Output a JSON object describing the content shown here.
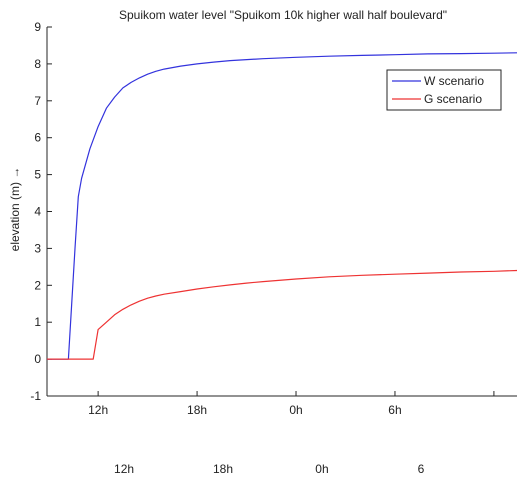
{
  "chart_data": {
    "type": "line",
    "title": "Spuikom water level \"Spuikom 10k higher wall half boulevard\"",
    "ylabel": "elevation (m) →",
    "xlabel": "",
    "ylim": [
      -1,
      9
    ],
    "yticks": [
      -1,
      0,
      1,
      2,
      3,
      4,
      5,
      6,
      7,
      8,
      9
    ],
    "xlim_hours": [
      8.9,
      37.4
    ],
    "xticks": [
      {
        "hour": 12,
        "label": "12h"
      },
      {
        "hour": 18,
        "label": "18h"
      },
      {
        "hour": 24,
        "label": "0h"
      },
      {
        "hour": 30,
        "label": "6h"
      },
      {
        "hour": 36,
        "label": ""
      }
    ],
    "secondary_xtick_labels": [
      {
        "hour": 18,
        "label": "12h"
      },
      {
        "hour": 24,
        "label": "18h"
      },
      {
        "hour": 30,
        "label": "0h"
      },
      {
        "hour": 36,
        "label": "6"
      }
    ],
    "grid": false,
    "legend": "top-right",
    "series": [
      {
        "name": "W scenario",
        "color": "#3333dd",
        "x": [
          8.9,
          10.2,
          10.4,
          10.6,
          10.8,
          11.0,
          11.5,
          12.0,
          12.5,
          13.0,
          13.5,
          14.0,
          14.5,
          15.0,
          15.5,
          16.0,
          17.0,
          18.0,
          19.0,
          20.0,
          22.0,
          24.0,
          26.0,
          28.0,
          30.0,
          32.0,
          34.0,
          36.0,
          37.4
        ],
        "y": [
          0.0,
          0.0,
          1.5,
          3.0,
          4.4,
          4.9,
          5.7,
          6.3,
          6.8,
          7.1,
          7.35,
          7.5,
          7.62,
          7.72,
          7.8,
          7.86,
          7.94,
          8.0,
          8.05,
          8.09,
          8.14,
          8.18,
          8.21,
          8.23,
          8.25,
          8.27,
          8.28,
          8.29,
          8.3
        ]
      },
      {
        "name": "G scenario",
        "color": "#ee3333",
        "x": [
          8.9,
          11.7,
          12.0,
          12.5,
          13.0,
          13.5,
          14.0,
          14.5,
          15.0,
          15.5,
          16.0,
          17.0,
          18.0,
          19.0,
          20.0,
          21.0,
          22.0,
          24.0,
          26.0,
          28.0,
          30.0,
          32.0,
          34.0,
          36.0,
          37.4
        ],
        "y": [
          0.0,
          0.0,
          0.8,
          1.0,
          1.2,
          1.35,
          1.47,
          1.57,
          1.65,
          1.71,
          1.76,
          1.83,
          1.9,
          1.96,
          2.01,
          2.06,
          2.1,
          2.17,
          2.23,
          2.27,
          2.3,
          2.33,
          2.36,
          2.38,
          2.4
        ]
      }
    ]
  }
}
